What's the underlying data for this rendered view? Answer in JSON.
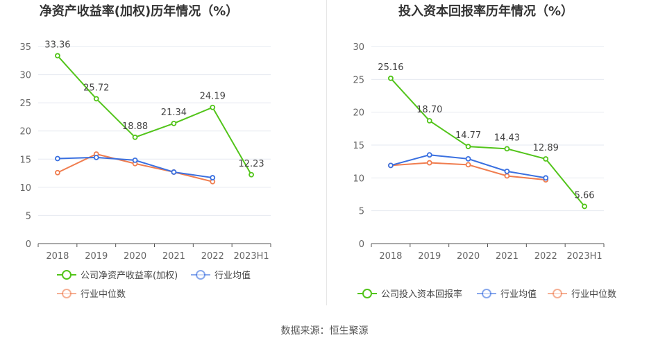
{
  "source": "数据来源：恒生聚源",
  "colors": {
    "company": "#52c41a",
    "avg": "#3a70e0",
    "median": "#f07d4f",
    "grid": "#e6e9f0",
    "axis": "#333",
    "text": "#666"
  },
  "chart_data": [
    {
      "type": "line",
      "title": "净资产收益率(加权)历年情况（%）",
      "categories": [
        "2018",
        "2019",
        "2020",
        "2021",
        "2022",
        "2023H1"
      ],
      "ylim": [
        0,
        35
      ],
      "yticks": [
        0,
        5,
        10,
        15,
        20,
        25,
        30,
        35
      ],
      "grid": true,
      "legend_placement": "bottom",
      "series": [
        {
          "name": "公司净资产收益率(加权)",
          "values": [
            33.36,
            25.72,
            18.88,
            21.34,
            24.19,
            12.23
          ],
          "labels": [
            "33.36",
            "25.72",
            "18.88",
            "21.34",
            "24.19",
            "12.23"
          ],
          "color_key": "company"
        },
        {
          "name": "行业均值",
          "values": [
            15.1,
            15.3,
            14.8,
            12.7,
            11.7,
            null
          ],
          "color_key": "avg"
        },
        {
          "name": "行业中位数",
          "values": [
            12.6,
            15.9,
            14.2,
            12.7,
            11.0,
            null
          ],
          "color_key": "median"
        }
      ]
    },
    {
      "type": "line",
      "title": "投入资本回报率历年情况（%）",
      "categories": [
        "2018",
        "2019",
        "2020",
        "2021",
        "2022",
        "2023H1"
      ],
      "ylim": [
        0,
        30
      ],
      "yticks": [
        0,
        5,
        10,
        15,
        20,
        25,
        30
      ],
      "grid": true,
      "legend_placement": "bottom",
      "series": [
        {
          "name": "公司投入资本回报率",
          "values": [
            25.16,
            18.7,
            14.77,
            14.43,
            12.89,
            5.66
          ],
          "labels": [
            "25.16",
            "18.70",
            "14.77",
            "14.43",
            "12.89",
            "5.66"
          ],
          "color_key": "company"
        },
        {
          "name": "行业均值",
          "values": [
            11.9,
            13.5,
            12.9,
            11.0,
            10.0,
            null
          ],
          "color_key": "avg"
        },
        {
          "name": "行业中位数",
          "values": [
            11.9,
            12.3,
            12.0,
            10.3,
            9.7,
            null
          ],
          "color_key": "median"
        }
      ]
    }
  ]
}
